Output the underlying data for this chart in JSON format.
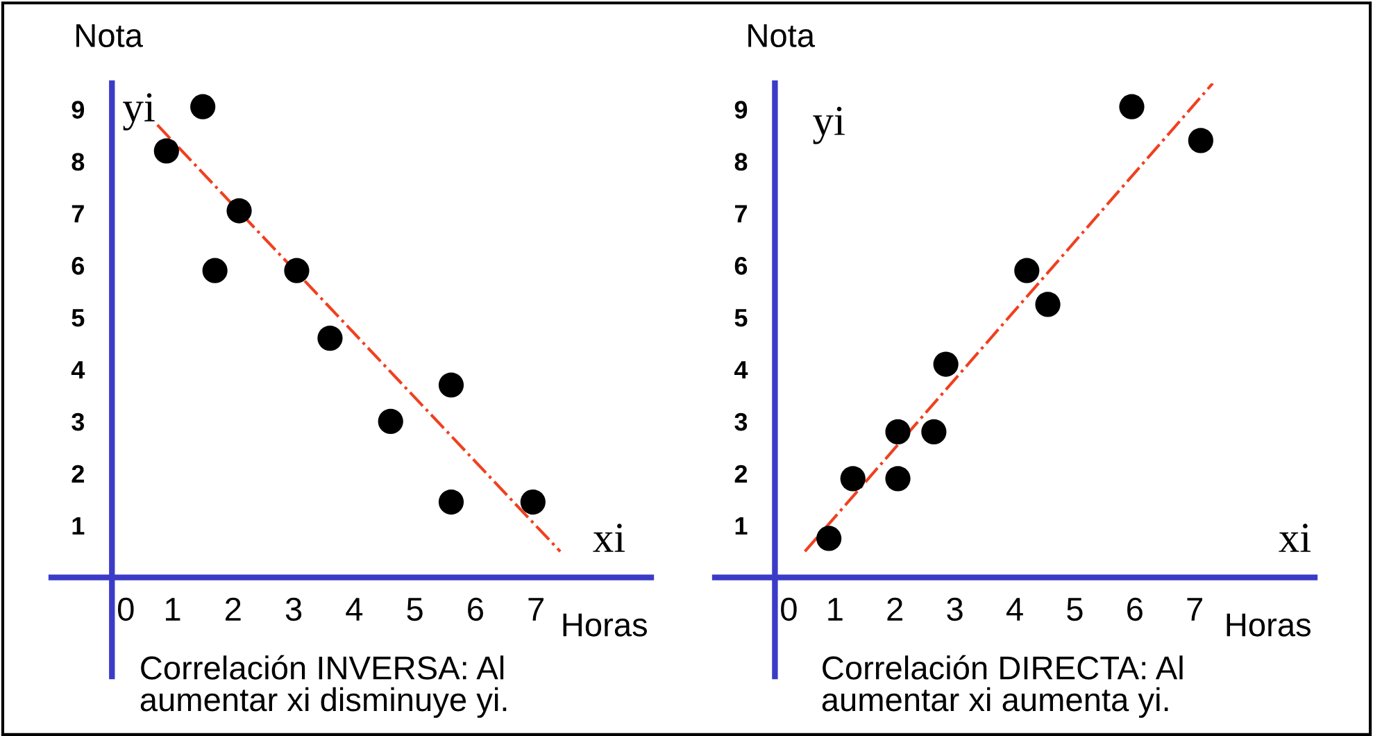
{
  "chart_data": [
    {
      "type": "scatter",
      "xlabel": "Horas",
      "ylabel": "Nota",
      "annotations": [
        "yi",
        "xi",
        "Correlación INVERSA: Al\naumentar xi disminuye yi."
      ],
      "xlim": [
        -1.0,
        8.9
      ],
      "ylim": [
        -1.9,
        9.5
      ],
      "xticks": [
        0,
        1,
        2,
        3,
        4,
        5,
        6,
        7
      ],
      "yticks": [
        1,
        2,
        3,
        4,
        5,
        6,
        7,
        8,
        9
      ],
      "grid": false,
      "series": [
        {
          "marker": "circle",
          "color": "#000000",
          "x": [
            0.9,
            1.5,
            2.1,
            1.7,
            3.05,
            3.6,
            4.6,
            5.6,
            5.6,
            6.95
          ],
          "values": [
            8.2,
            9.05,
            7.05,
            5.9,
            5.9,
            4.6,
            3.0,
            3.7,
            1.45,
            1.45
          ]
        },
        {
          "type": "line",
          "color": "#f04020",
          "line_style": "dashdot",
          "x": [
            0.75,
            7.4
          ],
          "values": [
            8.7,
            0.5
          ]
        }
      ]
    },
    {
      "type": "scatter",
      "xlabel": "Horas",
      "ylabel": "Nota",
      "annotations": [
        "yi",
        "xi",
        "Correlación DIRECTA: Al\naumentar xi aumenta yi."
      ],
      "xlim": [
        -1.0,
        9.0
      ],
      "ylim": [
        -1.9,
        9.5
      ],
      "xticks": [
        0,
        1,
        2,
        3,
        4,
        5,
        6,
        7
      ],
      "yticks": [
        1,
        2,
        3,
        4,
        5,
        6,
        7,
        8,
        9
      ],
      "grid": false,
      "series": [
        {
          "marker": "circle",
          "color": "#000000",
          "x": [
            0.9,
            1.3,
            2.05,
            2.05,
            2.65,
            2.85,
            4.2,
            4.55,
            5.95,
            7.1
          ],
          "values": [
            0.75,
            1.9,
            1.9,
            2.8,
            2.8,
            4.1,
            5.9,
            5.25,
            9.05,
            8.4
          ]
        },
        {
          "type": "line",
          "color": "#f04020",
          "line_style": "dashdot",
          "x": [
            0.5,
            7.3
          ],
          "values": [
            0.5,
            9.5
          ]
        }
      ]
    }
  ]
}
